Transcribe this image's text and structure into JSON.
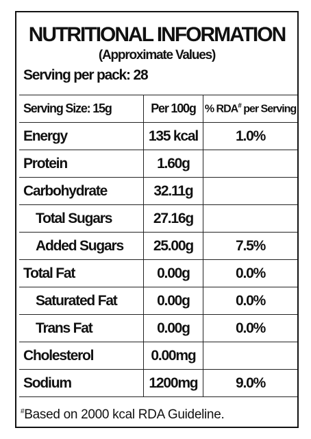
{
  "header": {
    "title": "NUTRITIONAL INFORMATION",
    "subtitle": "(Approximate Values)",
    "serving": "Serving per pack: 28"
  },
  "table": {
    "columns": [
      {
        "text": "Serving Size: 15g"
      },
      {
        "text": "Per 100g"
      },
      {
        "text": "% RDA",
        "sup": "#",
        "rest": " per Serving"
      }
    ],
    "rows": [
      {
        "cells": [
          "Energy",
          "135 kcal",
          "1.0%"
        ]
      },
      {
        "cells": [
          "Protein",
          "1.60g"
        ]
      },
      {
        "cells": [
          "Carbohydrate",
          "32.11g"
        ]
      },
      {
        "cells": [
          "Total Sugars",
          "27.16g"
        ],
        "indent": true
      },
      {
        "cells": [
          "Added Sugars",
          "25.00g",
          "7.5%"
        ],
        "indent": true
      },
      {
        "cells": [
          "Total Fat",
          "0.00g",
          "0.0%"
        ]
      },
      {
        "cells": [
          "Saturated Fat",
          "0.00g",
          "0.0%"
        ],
        "indent": true
      },
      {
        "cells": [
          "Trans Fat",
          "0.00g",
          "0.0%"
        ],
        "indent": true
      },
      {
        "cells": [
          "Cholesterol",
          "0.00mg"
        ]
      },
      {
        "cells": [
          "Sodium",
          "1200mg",
          "9.0%"
        ]
      }
    ]
  },
  "footnote": {
    "sup": "#",
    "text": "Based on 2000 kcal RDA Guideline."
  }
}
